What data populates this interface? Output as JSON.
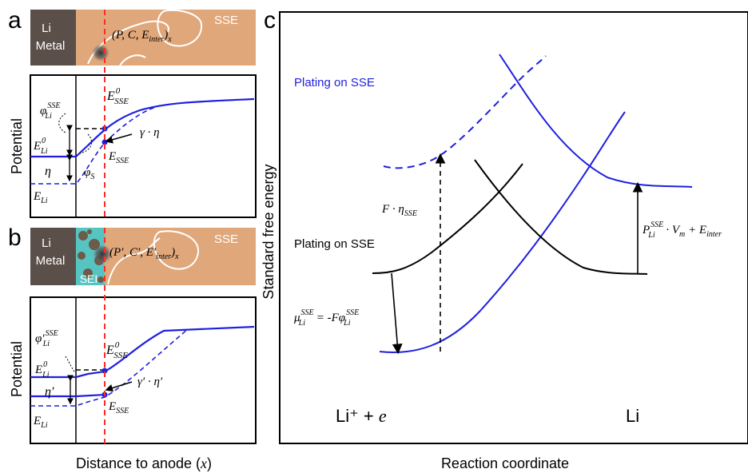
{
  "panel_a": {
    "letter": "a",
    "electrode_label_line1": "Li",
    "electrode_label_line2": "Metal",
    "electrolyte_label": "SSE",
    "defect_label": "(P, C, E",
    "defect_sub": "inter",
    "defect_tail": ")",
    "defect_outer_sub": "x",
    "ylabel": "Potential",
    "e0_sse": "E",
    "e0_sse_sub": "SSE",
    "e0_sse_sup": "0",
    "phi_li": "φ",
    "phi_li_sub": "Li",
    "phi_li_sup": "SSE",
    "e0_li": "E",
    "e0_li_sub": "Li",
    "e0_li_sup": "0",
    "eta": "η",
    "phi_s": "φ",
    "phi_s_sub": "S",
    "e_li": "E",
    "e_li_sub": "Li",
    "e_sse": "E",
    "e_sse_sub": "SSE",
    "gamma_eta": "γ · η"
  },
  "panel_b": {
    "letter": "b",
    "electrode_label_line1": "Li",
    "electrode_label_line2": "Metal",
    "sei_label": "SEI",
    "electrolyte_label": "SSE",
    "defect_label": "(P′, C′, E′",
    "defect_sub": "inter",
    "defect_tail": ")",
    "defect_outer_sub": "x",
    "ylabel": "Potential",
    "e0_sse": "E",
    "e0_sse_sub": "SSE",
    "e0_sse_sup": "0",
    "phi_li": "φ′",
    "phi_li_sub": "Li",
    "phi_li_sup": "SSE",
    "e0_li": "E",
    "e0_li_sub": "Li",
    "e0_li_sup": "0",
    "eta": "η′",
    "e_li": "E",
    "e_li_sub": "Li",
    "e_sse": "E",
    "e_sse_sub": "SSE",
    "gamma_eta": "γ′ · η′"
  },
  "xlabel": "Distance to anode (",
  "xlabel_var": "x",
  "xlabel_tail": ")",
  "panel_c": {
    "letter": "c",
    "ylabel": "Standard free energy",
    "xlabel": "Reaction coordinate",
    "blue_label": "Plating on SSE",
    "black_label": "Plating on SSE",
    "f_eta": "F · η",
    "f_eta_sub": "SSE",
    "mu_main": "μ",
    "mu_sub": "Li",
    "mu_sup": "SSE",
    "mu_eq": " = -Fφ",
    "mu_eq_sub": "Li",
    "mu_eq_sup": "SSE",
    "p_main": "P",
    "p_sub": "Li",
    "p_sup": "SSE",
    "p_rest": " · V",
    "p_rest_sub": "m",
    "p_plus": " + E",
    "p_plus_sub": "inter",
    "left_state": "Li⁺ + ",
    "left_state_e": "e",
    "right_state": "Li"
  },
  "colors": {
    "sse_fill": "#e0a77a",
    "li_metal": "#5b4f49",
    "sei": "#56c5c2",
    "blue": "#1f1fe0",
    "red_dash": "#ff2a2a"
  }
}
